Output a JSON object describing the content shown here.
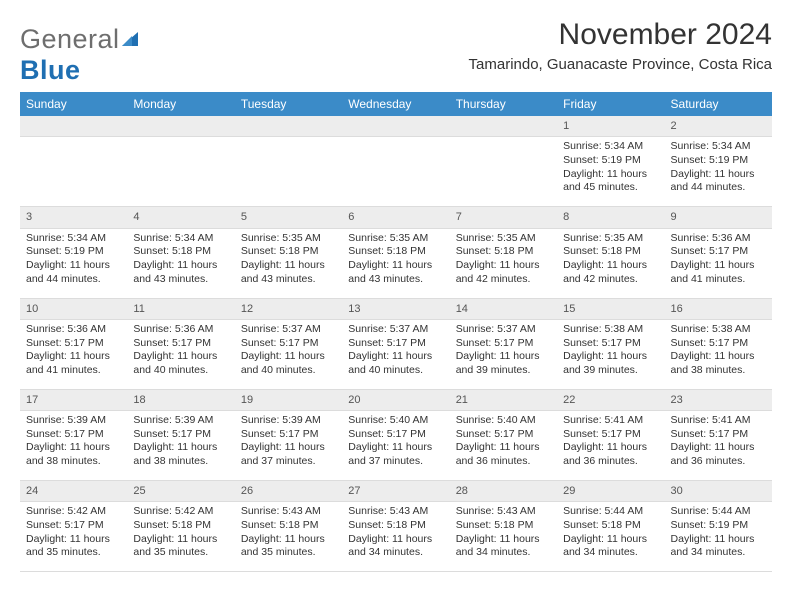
{
  "brand": {
    "name_part1": "General",
    "name_part2": "Blue",
    "color_general": "#6e6e6e",
    "color_blue": "#1f6fb2",
    "icon_fill": "#1f6fb2"
  },
  "header": {
    "month_title": "November 2024",
    "location": "Tamarindo, Guanacaste Province, Costa Rica"
  },
  "style": {
    "header_bg": "#3b8bc8",
    "header_text": "#ffffff",
    "daynum_bg": "#ededed",
    "border_color": "#dcdcdc",
    "page_bg": "#ffffff",
    "text_color": "#333333"
  },
  "weekdays": [
    "Sunday",
    "Monday",
    "Tuesday",
    "Wednesday",
    "Thursday",
    "Friday",
    "Saturday"
  ],
  "weeks": [
    {
      "nums": [
        "",
        "",
        "",
        "",
        "",
        "1",
        "2"
      ],
      "cells": [
        {
          "lines": []
        },
        {
          "lines": []
        },
        {
          "lines": []
        },
        {
          "lines": []
        },
        {
          "lines": []
        },
        {
          "lines": [
            "Sunrise: 5:34 AM",
            "Sunset: 5:19 PM",
            "Daylight: 11 hours and 45 minutes."
          ]
        },
        {
          "lines": [
            "Sunrise: 5:34 AM",
            "Sunset: 5:19 PM",
            "Daylight: 11 hours and 44 minutes."
          ]
        }
      ]
    },
    {
      "nums": [
        "3",
        "4",
        "5",
        "6",
        "7",
        "8",
        "9"
      ],
      "cells": [
        {
          "lines": [
            "Sunrise: 5:34 AM",
            "Sunset: 5:19 PM",
            "Daylight: 11 hours and 44 minutes."
          ]
        },
        {
          "lines": [
            "Sunrise: 5:34 AM",
            "Sunset: 5:18 PM",
            "Daylight: 11 hours and 43 minutes."
          ]
        },
        {
          "lines": [
            "Sunrise: 5:35 AM",
            "Sunset: 5:18 PM",
            "Daylight: 11 hours and 43 minutes."
          ]
        },
        {
          "lines": [
            "Sunrise: 5:35 AM",
            "Sunset: 5:18 PM",
            "Daylight: 11 hours and 43 minutes."
          ]
        },
        {
          "lines": [
            "Sunrise: 5:35 AM",
            "Sunset: 5:18 PM",
            "Daylight: 11 hours and 42 minutes."
          ]
        },
        {
          "lines": [
            "Sunrise: 5:35 AM",
            "Sunset: 5:18 PM",
            "Daylight: 11 hours and 42 minutes."
          ]
        },
        {
          "lines": [
            "Sunrise: 5:36 AM",
            "Sunset: 5:17 PM",
            "Daylight: 11 hours and 41 minutes."
          ]
        }
      ]
    },
    {
      "nums": [
        "10",
        "11",
        "12",
        "13",
        "14",
        "15",
        "16"
      ],
      "cells": [
        {
          "lines": [
            "Sunrise: 5:36 AM",
            "Sunset: 5:17 PM",
            "Daylight: 11 hours and 41 minutes."
          ]
        },
        {
          "lines": [
            "Sunrise: 5:36 AM",
            "Sunset: 5:17 PM",
            "Daylight: 11 hours and 40 minutes."
          ]
        },
        {
          "lines": [
            "Sunrise: 5:37 AM",
            "Sunset: 5:17 PM",
            "Daylight: 11 hours and 40 minutes."
          ]
        },
        {
          "lines": [
            "Sunrise: 5:37 AM",
            "Sunset: 5:17 PM",
            "Daylight: 11 hours and 40 minutes."
          ]
        },
        {
          "lines": [
            "Sunrise: 5:37 AM",
            "Sunset: 5:17 PM",
            "Daylight: 11 hours and 39 minutes."
          ]
        },
        {
          "lines": [
            "Sunrise: 5:38 AM",
            "Sunset: 5:17 PM",
            "Daylight: 11 hours and 39 minutes."
          ]
        },
        {
          "lines": [
            "Sunrise: 5:38 AM",
            "Sunset: 5:17 PM",
            "Daylight: 11 hours and 38 minutes."
          ]
        }
      ]
    },
    {
      "nums": [
        "17",
        "18",
        "19",
        "20",
        "21",
        "22",
        "23"
      ],
      "cells": [
        {
          "lines": [
            "Sunrise: 5:39 AM",
            "Sunset: 5:17 PM",
            "Daylight: 11 hours and 38 minutes."
          ]
        },
        {
          "lines": [
            "Sunrise: 5:39 AM",
            "Sunset: 5:17 PM",
            "Daylight: 11 hours and 38 minutes."
          ]
        },
        {
          "lines": [
            "Sunrise: 5:39 AM",
            "Sunset: 5:17 PM",
            "Daylight: 11 hours and 37 minutes."
          ]
        },
        {
          "lines": [
            "Sunrise: 5:40 AM",
            "Sunset: 5:17 PM",
            "Daylight: 11 hours and 37 minutes."
          ]
        },
        {
          "lines": [
            "Sunrise: 5:40 AM",
            "Sunset: 5:17 PM",
            "Daylight: 11 hours and 36 minutes."
          ]
        },
        {
          "lines": [
            "Sunrise: 5:41 AM",
            "Sunset: 5:17 PM",
            "Daylight: 11 hours and 36 minutes."
          ]
        },
        {
          "lines": [
            "Sunrise: 5:41 AM",
            "Sunset: 5:17 PM",
            "Daylight: 11 hours and 36 minutes."
          ]
        }
      ]
    },
    {
      "nums": [
        "24",
        "25",
        "26",
        "27",
        "28",
        "29",
        "30"
      ],
      "cells": [
        {
          "lines": [
            "Sunrise: 5:42 AM",
            "Sunset: 5:17 PM",
            "Daylight: 11 hours and 35 minutes."
          ]
        },
        {
          "lines": [
            "Sunrise: 5:42 AM",
            "Sunset: 5:18 PM",
            "Daylight: 11 hours and 35 minutes."
          ]
        },
        {
          "lines": [
            "Sunrise: 5:43 AM",
            "Sunset: 5:18 PM",
            "Daylight: 11 hours and 35 minutes."
          ]
        },
        {
          "lines": [
            "Sunrise: 5:43 AM",
            "Sunset: 5:18 PM",
            "Daylight: 11 hours and 34 minutes."
          ]
        },
        {
          "lines": [
            "Sunrise: 5:43 AM",
            "Sunset: 5:18 PM",
            "Daylight: 11 hours and 34 minutes."
          ]
        },
        {
          "lines": [
            "Sunrise: 5:44 AM",
            "Sunset: 5:18 PM",
            "Daylight: 11 hours and 34 minutes."
          ]
        },
        {
          "lines": [
            "Sunrise: 5:44 AM",
            "Sunset: 5:19 PM",
            "Daylight: 11 hours and 34 minutes."
          ]
        }
      ]
    }
  ]
}
